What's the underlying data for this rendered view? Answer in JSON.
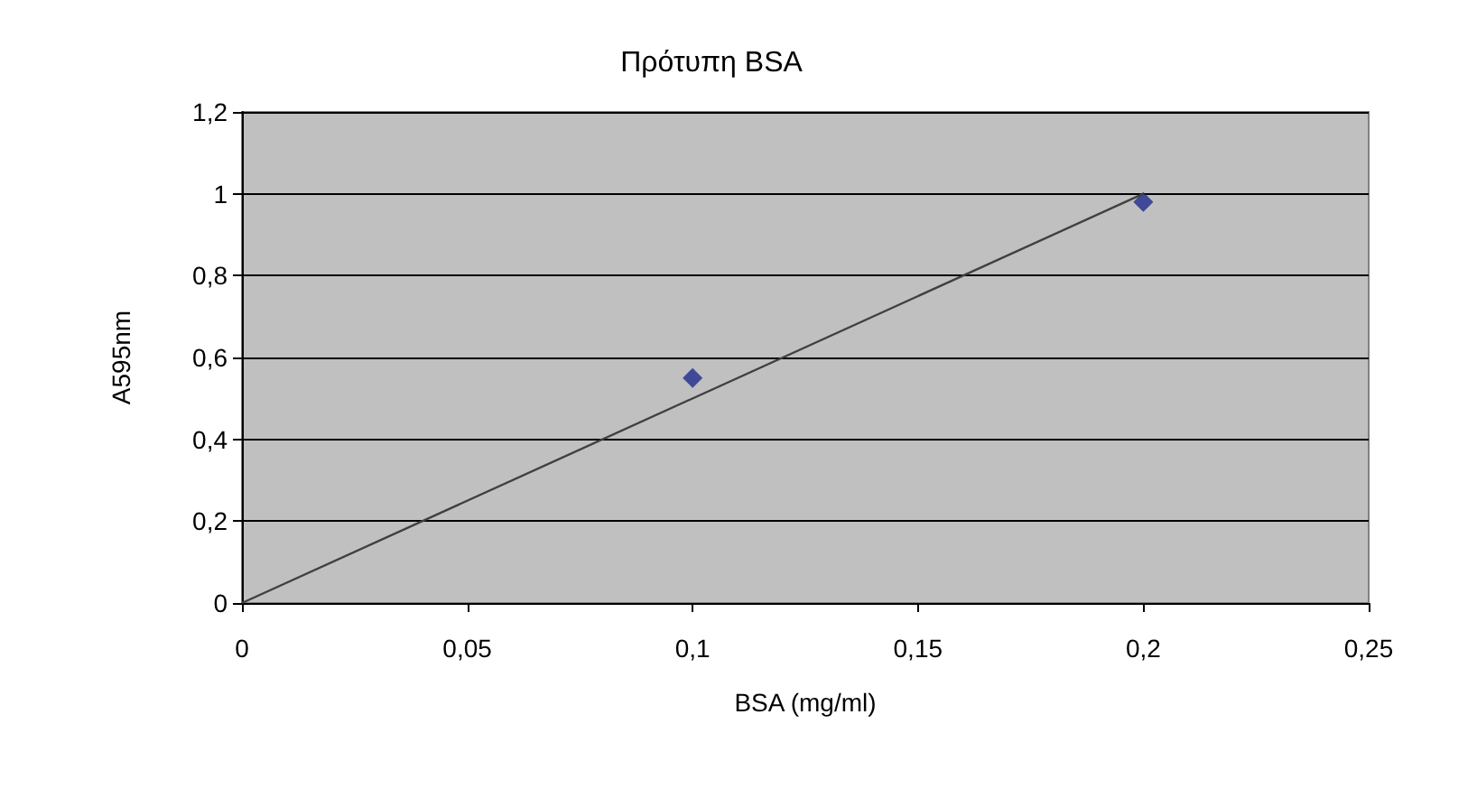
{
  "chart_data": {
    "type": "scatter",
    "title": "Πρότυπη BSA",
    "xlabel": "BSA (mg/ml)",
    "ylabel": "A595nm",
    "series": [
      {
        "color": "#1f2a8c",
        "x": [
          0.1,
          0.2
        ],
        "values": [
          0.55,
          0.98
        ]
      },
      {
        "type": "line",
        "marker": "none",
        "color": "#404040",
        "x": [
          0,
          0.2
        ],
        "values": [
          0,
          1.0
        ]
      }
    ],
    "xlim": [
      0,
      0.25
    ],
    "xticks": [
      {
        "value": 0,
        "label": "0"
      },
      {
        "value": 0.05,
        "label": "0,05"
      },
      {
        "value": 0.1,
        "label": "0,1"
      },
      {
        "value": 0.15,
        "label": "0,15"
      },
      {
        "value": 0.2,
        "label": "0,2"
      },
      {
        "value": 0.25,
        "label": "0,25"
      }
    ],
    "ylim": [
      0,
      1.2
    ],
    "yticks": [
      {
        "value": 0,
        "label": "0"
      },
      {
        "value": 0.2,
        "label": "0,2"
      },
      {
        "value": 0.4,
        "label": "0,4"
      },
      {
        "value": 0.6,
        "label": "0,6"
      },
      {
        "value": 0.8,
        "label": "0,8"
      },
      {
        "value": 1,
        "label": "1"
      },
      {
        "value": 1.2,
        "label": "1,2"
      }
    ],
    "grid": "y",
    "marker": "diamond"
  }
}
